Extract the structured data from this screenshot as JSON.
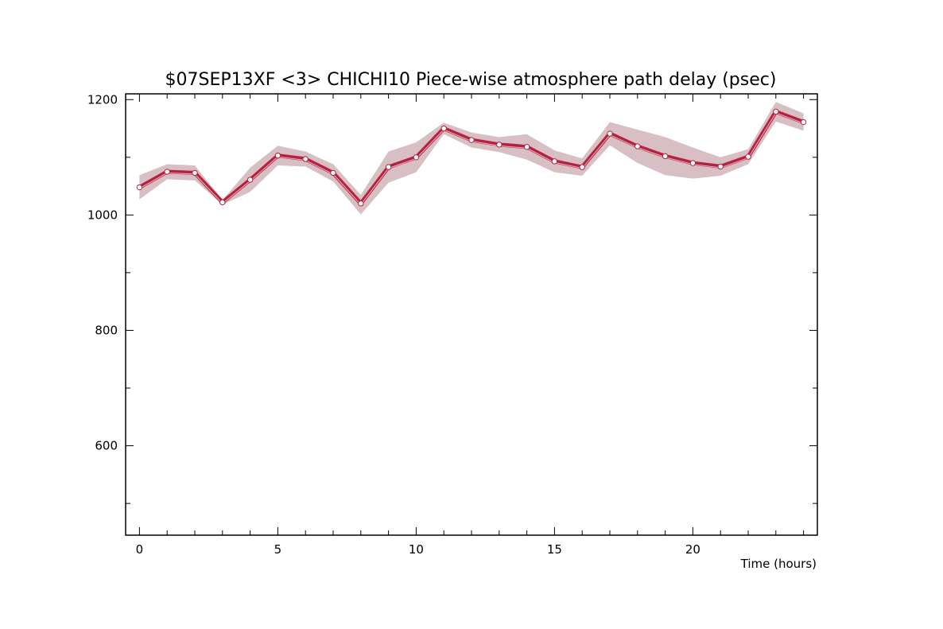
{
  "chart_data": {
    "type": "line",
    "title": "$07SEP13XF <3>  CHICHI10  Piece-wise atmosphere path delay (psec)",
    "xlabel": "Time (hours)",
    "ylabel": "",
    "xlim": [
      -0.5,
      24.5
    ],
    "ylim": [
      445,
      1210
    ],
    "x_ticks": [
      0,
      5,
      10,
      15,
      20
    ],
    "y_ticks": [
      600,
      800,
      1000,
      1200
    ],
    "grid": false,
    "colors": {
      "line": "#b5223f",
      "band": "#d8bfc4",
      "marker_fill": "#ffffff",
      "axis": "#000000"
    },
    "series": [
      {
        "x": [
          0,
          1,
          2,
          3,
          4,
          5,
          6,
          7,
          8,
          9,
          10,
          11,
          12,
          13,
          14,
          15,
          16,
          17,
          18,
          19,
          20,
          21,
          22,
          23,
          24
        ],
        "y": [
          1048,
          1075,
          1073,
          1022,
          1061,
          1103,
          1097,
          1073,
          1020,
          1083,
          1100,
          1150,
          1130,
          1122,
          1118,
          1093,
          1083,
          1141,
          1119,
          1102,
          1090,
          1084,
          1101,
          1179,
          1161
        ],
        "y_upper": [
          1069,
          1088,
          1086,
          1026,
          1082,
          1120,
          1110,
          1088,
          1035,
          1110,
          1126,
          1160,
          1143,
          1135,
          1140,
          1112,
          1098,
          1161,
          1148,
          1135,
          1117,
          1100,
          1114,
          1196,
          1176
        ],
        "y_lower": [
          1027,
          1062,
          1060,
          1018,
          1040,
          1086,
          1084,
          1058,
          1001,
          1056,
          1074,
          1140,
          1117,
          1109,
          1096,
          1074,
          1068,
          1121,
          1090,
          1069,
          1063,
          1068,
          1088,
          1162,
          1146
        ]
      }
    ]
  }
}
